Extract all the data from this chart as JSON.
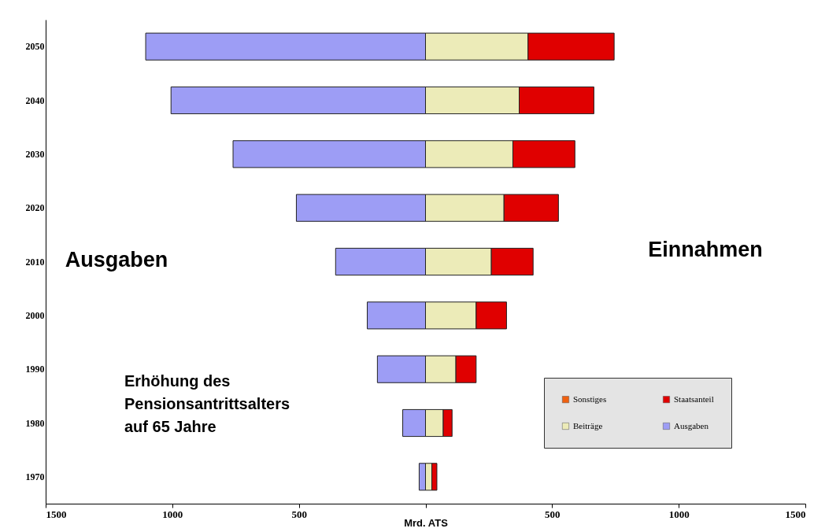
{
  "chart_data": {
    "type": "bar",
    "orientation": "horizontal",
    "stacked": true,
    "xlabel": "Mrd. ATS",
    "categories": [
      "2050",
      "2040",
      "2030",
      "2020",
      "2010",
      "2000",
      "1990",
      "1980",
      "1970"
    ],
    "series": [
      {
        "name": "Sonstiges",
        "color": "#f06010",
        "values": [
          null,
          null,
          null,
          null,
          null,
          null,
          null,
          null,
          null
        ]
      },
      {
        "name": "Beiträge",
        "color": "#ecebb8",
        "values": [
          405,
          370,
          345,
          310,
          260,
          200,
          120,
          70,
          25
        ]
      },
      {
        "name": "Staatsanteil",
        "color": "#e00000",
        "values": [
          340,
          295,
          245,
          215,
          165,
          120,
          80,
          35,
          20
        ]
      },
      {
        "name": "Ausgaben",
        "color": "#9d9df5",
        "values": [
          -1105,
          -1005,
          -760,
          -510,
          -355,
          -230,
          -190,
          -90,
          -25
        ]
      }
    ],
    "xlim": [
      -1500,
      1500
    ],
    "xticks": [
      {
        "value": -1500,
        "label": "1500"
      },
      {
        "value": -1000,
        "label": "1000"
      },
      {
        "value": -500,
        "label": "500"
      },
      {
        "value": 0,
        "label": null
      },
      500,
      1000,
      1500
    ],
    "legend": "bottom right",
    "grid": false,
    "annotations": [
      "Ausgaben",
      "Einnahmen",
      "Erhöhung des\nPensionsantrittsalters\nauf 65 Jahre"
    ]
  }
}
